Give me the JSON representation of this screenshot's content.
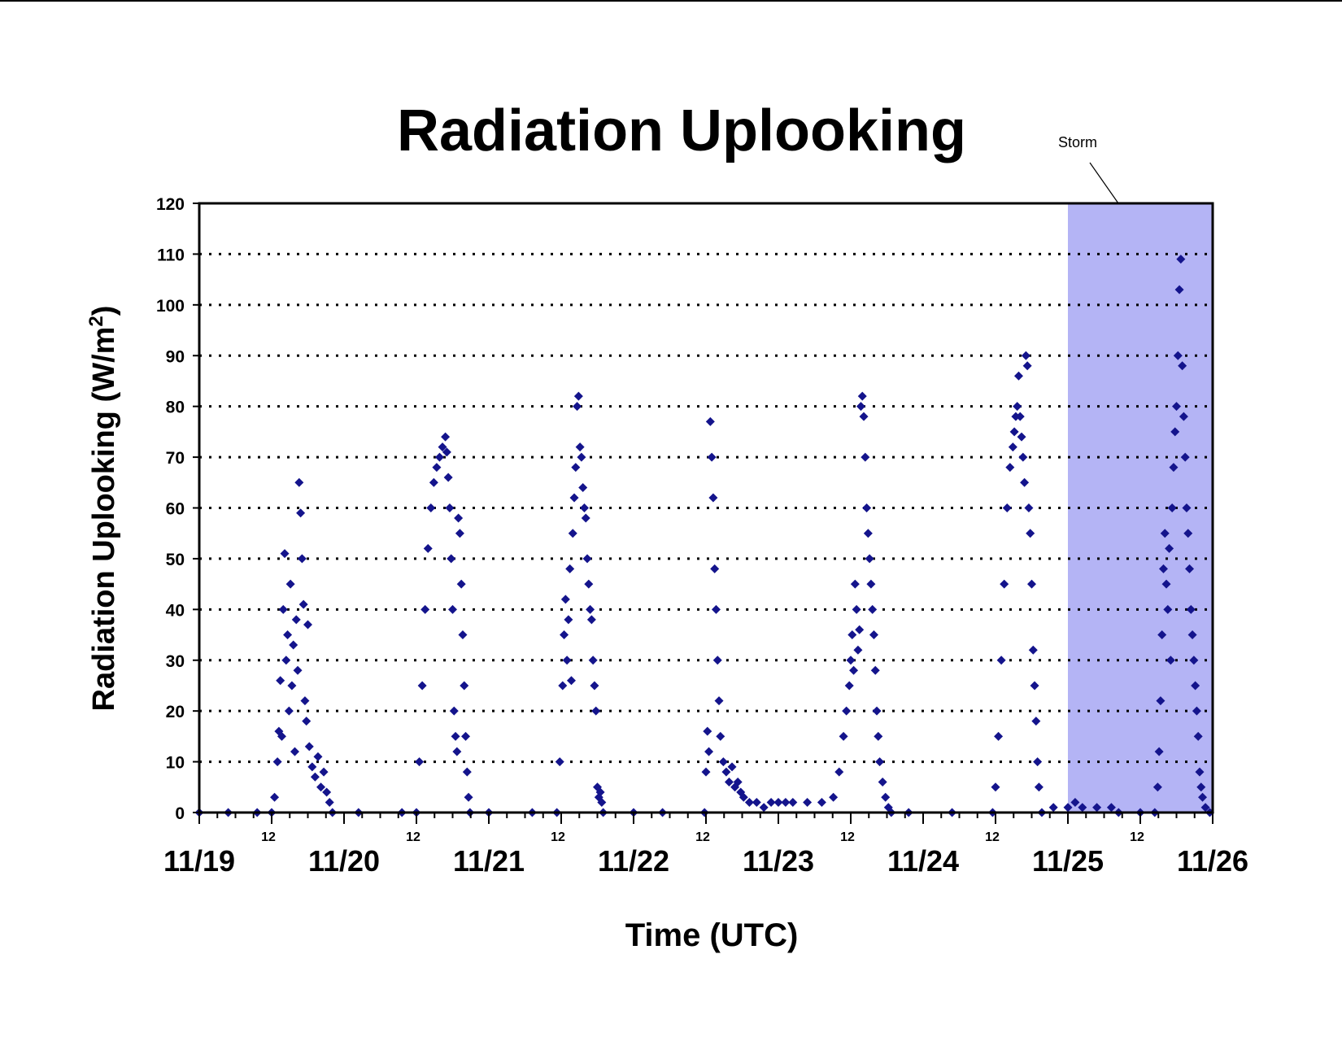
{
  "chart_data": {
    "type": "scatter",
    "title": "Radiation Uplooking",
    "xlabel": "Time (UTC)",
    "ylabel_main": "Radiation Uplooking (W/m",
    "ylabel_sup": "2",
    "ylabel_close": ")",
    "xlim": [
      0,
      7
    ],
    "ylim": [
      0,
      120
    ],
    "x_unit": "days since 11/19 00:00 UTC",
    "yticks": [
      0,
      10,
      20,
      30,
      40,
      50,
      60,
      70,
      80,
      90,
      100,
      110,
      120
    ],
    "dotted_grid_y": [
      10,
      20,
      30,
      40,
      50,
      60,
      70,
      80,
      90,
      100,
      110
    ],
    "date_labels": [
      "11/19",
      "11/20",
      "11/21",
      "11/22",
      "11/23",
      "11/24",
      "11/25",
      "11/26"
    ],
    "hour_label": "12",
    "annotation": {
      "text": "Storm",
      "x_start": 6.0,
      "x_end": 7.0
    },
    "colors": {
      "marker": "#14148c",
      "storm": "#b4b4f5",
      "axis": "#000000"
    },
    "series": [
      {
        "points": [
          [
            0.0,
            0
          ],
          [
            0.2,
            0
          ],
          [
            0.4,
            0
          ],
          [
            0.5,
            0
          ],
          [
            0.52,
            3
          ],
          [
            0.54,
            10
          ],
          [
            0.55,
            16
          ],
          [
            0.56,
            26
          ],
          [
            0.57,
            15
          ],
          [
            0.58,
            40
          ],
          [
            0.59,
            51
          ],
          [
            0.6,
            30
          ],
          [
            0.61,
            35
          ],
          [
            0.62,
            20
          ],
          [
            0.63,
            45
          ],
          [
            0.64,
            25
          ],
          [
            0.65,
            33
          ],
          [
            0.66,
            12
          ],
          [
            0.67,
            38
          ],
          [
            0.68,
            28
          ],
          [
            0.69,
            65
          ],
          [
            0.7,
            59
          ],
          [
            0.71,
            50
          ],
          [
            0.72,
            41
          ],
          [
            0.73,
            22
          ],
          [
            0.74,
            18
          ],
          [
            0.75,
            37
          ],
          [
            0.76,
            13
          ],
          [
            0.78,
            9
          ],
          [
            0.8,
            7
          ],
          [
            0.82,
            11
          ],
          [
            0.84,
            5
          ],
          [
            0.86,
            8
          ],
          [
            0.88,
            4
          ],
          [
            0.9,
            2
          ],
          [
            0.92,
            0
          ],
          [
            1.1,
            0
          ],
          [
            1.4,
            0
          ],
          [
            1.5,
            0
          ],
          [
            1.52,
            10
          ],
          [
            1.54,
            25
          ],
          [
            1.56,
            40
          ],
          [
            1.58,
            52
          ],
          [
            1.6,
            60
          ],
          [
            1.62,
            65
          ],
          [
            1.64,
            68
          ],
          [
            1.66,
            70
          ],
          [
            1.68,
            72
          ],
          [
            1.7,
            74
          ],
          [
            1.71,
            71
          ],
          [
            1.72,
            66
          ],
          [
            1.73,
            60
          ],
          [
            1.74,
            50
          ],
          [
            1.75,
            40
          ],
          [
            1.76,
            20
          ],
          [
            1.77,
            15
          ],
          [
            1.78,
            12
          ],
          [
            1.79,
            58
          ],
          [
            1.8,
            55
          ],
          [
            1.81,
            45
          ],
          [
            1.82,
            35
          ],
          [
            1.83,
            25
          ],
          [
            1.84,
            15
          ],
          [
            1.85,
            8
          ],
          [
            1.86,
            3
          ],
          [
            1.87,
            0
          ],
          [
            2.0,
            0
          ],
          [
            2.3,
            0
          ],
          [
            2.47,
            0
          ],
          [
            2.49,
            10
          ],
          [
            2.51,
            25
          ],
          [
            2.52,
            35
          ],
          [
            2.53,
            42
          ],
          [
            2.54,
            30
          ],
          [
            2.55,
            38
          ],
          [
            2.56,
            48
          ],
          [
            2.57,
            26
          ],
          [
            2.58,
            55
          ],
          [
            2.59,
            62
          ],
          [
            2.6,
            68
          ],
          [
            2.61,
            80
          ],
          [
            2.62,
            82
          ],
          [
            2.63,
            72
          ],
          [
            2.64,
            70
          ],
          [
            2.65,
            64
          ],
          [
            2.66,
            60
          ],
          [
            2.67,
            58
          ],
          [
            2.68,
            50
          ],
          [
            2.69,
            45
          ],
          [
            2.7,
            40
          ],
          [
            2.71,
            38
          ],
          [
            2.72,
            30
          ],
          [
            2.73,
            25
          ],
          [
            2.74,
            20
          ],
          [
            2.75,
            5
          ],
          [
            2.76,
            3
          ],
          [
            2.77,
            4
          ],
          [
            2.78,
            2
          ],
          [
            2.79,
            0
          ],
          [
            3.0,
            0
          ],
          [
            3.2,
            0
          ],
          [
            3.49,
            0
          ],
          [
            3.5,
            8
          ],
          [
            3.51,
            16
          ],
          [
            3.52,
            12
          ],
          [
            3.53,
            77
          ],
          [
            3.54,
            70
          ],
          [
            3.55,
            62
          ],
          [
            3.56,
            48
          ],
          [
            3.57,
            40
          ],
          [
            3.58,
            30
          ],
          [
            3.59,
            22
          ],
          [
            3.6,
            15
          ],
          [
            3.62,
            10
          ],
          [
            3.64,
            8
          ],
          [
            3.66,
            6
          ],
          [
            3.68,
            9
          ],
          [
            3.7,
            5
          ],
          [
            3.72,
            6
          ],
          [
            3.74,
            4
          ],
          [
            3.76,
            3
          ],
          [
            3.8,
            2
          ],
          [
            3.85,
            2
          ],
          [
            3.9,
            1
          ],
          [
            3.95,
            2
          ],
          [
            4.0,
            2
          ],
          [
            4.05,
            2
          ],
          [
            4.1,
            2
          ],
          [
            4.2,
            2
          ],
          [
            4.3,
            2
          ],
          [
            4.38,
            3
          ],
          [
            4.42,
            8
          ],
          [
            4.45,
            15
          ],
          [
            4.47,
            20
          ],
          [
            4.49,
            25
          ],
          [
            4.5,
            30
          ],
          [
            4.51,
            35
          ],
          [
            4.52,
            28
          ],
          [
            4.53,
            45
          ],
          [
            4.54,
            40
          ],
          [
            4.55,
            32
          ],
          [
            4.56,
            36
          ],
          [
            4.57,
            80
          ],
          [
            4.58,
            82
          ],
          [
            4.59,
            78
          ],
          [
            4.6,
            70
          ],
          [
            4.61,
            60
          ],
          [
            4.62,
            55
          ],
          [
            4.63,
            50
          ],
          [
            4.64,
            45
          ],
          [
            4.65,
            40
          ],
          [
            4.66,
            35
          ],
          [
            4.67,
            28
          ],
          [
            4.68,
            20
          ],
          [
            4.69,
            15
          ],
          [
            4.7,
            10
          ],
          [
            4.72,
            6
          ],
          [
            4.74,
            3
          ],
          [
            4.76,
            1
          ],
          [
            4.78,
            0
          ],
          [
            4.9,
            0
          ],
          [
            5.2,
            0
          ],
          [
            5.48,
            0
          ],
          [
            5.5,
            5
          ],
          [
            5.52,
            15
          ],
          [
            5.54,
            30
          ],
          [
            5.56,
            45
          ],
          [
            5.58,
            60
          ],
          [
            5.6,
            68
          ],
          [
            5.62,
            72
          ],
          [
            5.63,
            75
          ],
          [
            5.64,
            78
          ],
          [
            5.65,
            80
          ],
          [
            5.66,
            86
          ],
          [
            5.67,
            78
          ],
          [
            5.68,
            74
          ],
          [
            5.69,
            70
          ],
          [
            5.7,
            65
          ],
          [
            5.71,
            90
          ],
          [
            5.72,
            88
          ],
          [
            5.73,
            60
          ],
          [
            5.74,
            55
          ],
          [
            5.75,
            45
          ],
          [
            5.76,
            32
          ],
          [
            5.77,
            25
          ],
          [
            5.78,
            18
          ],
          [
            5.79,
            10
          ],
          [
            5.8,
            5
          ],
          [
            5.82,
            0
          ],
          [
            5.9,
            1
          ],
          [
            6.0,
            1
          ],
          [
            6.05,
            2
          ],
          [
            6.1,
            1
          ],
          [
            6.2,
            1
          ],
          [
            6.3,
            1
          ],
          [
            6.35,
            0
          ],
          [
            6.5,
            0
          ],
          [
            6.6,
            0
          ],
          [
            6.62,
            5
          ],
          [
            6.63,
            12
          ],
          [
            6.64,
            22
          ],
          [
            6.65,
            35
          ],
          [
            6.66,
            48
          ],
          [
            6.67,
            55
          ],
          [
            6.68,
            45
          ],
          [
            6.69,
            40
          ],
          [
            6.7,
            52
          ],
          [
            6.71,
            30
          ],
          [
            6.72,
            60
          ],
          [
            6.73,
            68
          ],
          [
            6.74,
            75
          ],
          [
            6.75,
            80
          ],
          [
            6.76,
            90
          ],
          [
            6.77,
            103
          ],
          [
            6.78,
            109
          ],
          [
            6.79,
            88
          ],
          [
            6.8,
            78
          ],
          [
            6.81,
            70
          ],
          [
            6.82,
            60
          ],
          [
            6.83,
            55
          ],
          [
            6.84,
            48
          ],
          [
            6.85,
            40
          ],
          [
            6.86,
            35
          ],
          [
            6.87,
            30
          ],
          [
            6.88,
            25
          ],
          [
            6.89,
            20
          ],
          [
            6.9,
            15
          ],
          [
            6.91,
            8
          ],
          [
            6.92,
            5
          ],
          [
            6.93,
            3
          ],
          [
            6.95,
            1
          ],
          [
            6.98,
            0
          ]
        ]
      }
    ]
  }
}
